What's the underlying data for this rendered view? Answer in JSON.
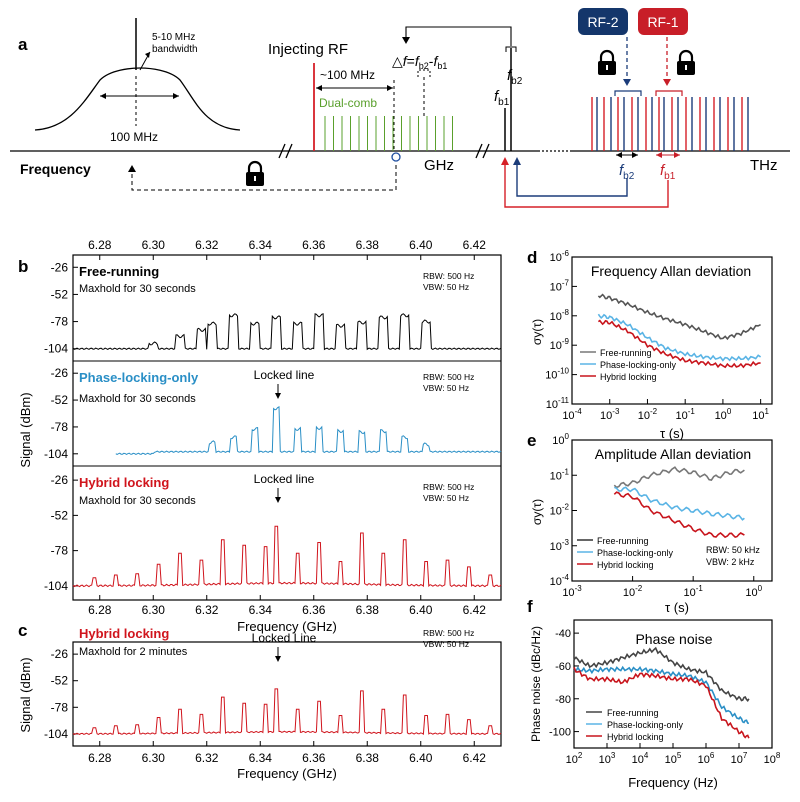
{
  "panel_a": {
    "label": "a",
    "bw_label_line1": "5-10 MHz",
    "bw_label_line2": "bandwidth",
    "width_label": "100 MHz",
    "injecting_rf": "Injecting RF",
    "spacing_label": "~100 MHz",
    "dual_comb": "Dual-comb",
    "delta_f": "△f=f_b2-f_b1",
    "fb1": "f_b1",
    "fb2": "f_b2",
    "frequency": "Frequency",
    "ghz": "GHz",
    "thz": "THz",
    "rf2": "RF-2",
    "rf1": "RF-1",
    "fb2_bottom": "f_b2",
    "fb1_bottom": "f_b1",
    "colors": {
      "red": "#d62028",
      "blue": "#1b3c7a",
      "green": "#5aa02c",
      "rf2_box": "#14366b",
      "rf1_box": "#c81e28"
    }
  },
  "panel_b": {
    "label": "b",
    "ylabel": "Signal (dBm)",
    "xlabel": "Frequency (GHz)",
    "x_ticks": [
      "6.28",
      "6.30",
      "6.32",
      "6.34",
      "6.36",
      "6.38",
      "6.40",
      "6.42"
    ],
    "y_ticks": [
      "-26",
      "-52",
      "-78",
      "-104"
    ],
    "subpanels": [
      {
        "title": "Free-running",
        "subtitle": "Maxhold for 30 seconds",
        "rbw": "RBW: 500 Hz",
        "vbw": "VBW: 50 Hz",
        "locked": "",
        "color": "#000000"
      },
      {
        "title": "Phase-locking-only",
        "subtitle": "Maxhold for 30 seconds",
        "rbw": "RBW: 500 Hz",
        "vbw": "VBW: 50 Hz",
        "locked": "Locked line",
        "color": "#2a8fc6"
      },
      {
        "title": "Hybrid locking",
        "subtitle": "Maxhold for 30 seconds",
        "rbw": "RBW: 500 Hz",
        "vbw": "VBW: 50 Hz",
        "locked": "Locked line",
        "color": "#d0141c"
      }
    ]
  },
  "panel_c": {
    "label": "c",
    "title": "Hybrid locking",
    "subtitle": "Maxhold for 2 minutes",
    "locked": "Locked Line",
    "rbw": "RBW: 500 Hz",
    "vbw": "VBW: 50 Hz",
    "ylabel": "Signal (dBm)",
    "xlabel": "Frequency (GHz)",
    "x_ticks": [
      "6.28",
      "6.30",
      "6.32",
      "6.34",
      "6.36",
      "6.38",
      "6.40",
      "6.42"
    ],
    "y_ticks": [
      "-26",
      "-52",
      "-78",
      "-104"
    ]
  },
  "panel_d": {
    "label": "d",
    "title": "Frequency Allan deviation",
    "ylabel": "σy(τ)",
    "xlabel": "τ (s)",
    "x_ticks": [
      "10-4",
      "10-3",
      "10-2",
      "10-1",
      "100",
      "101"
    ],
    "y_ticks": [
      "10-6",
      "10-7",
      "10-8",
      "10-9",
      "10-10",
      "10-11"
    ],
    "legend": [
      "Free-running",
      "Phase-locking-only",
      "Hybrid locking"
    ]
  },
  "panel_e": {
    "label": "e",
    "title": "Amplitude Allan deviation",
    "ylabel": "σy(τ)",
    "xlabel": "τ (s)",
    "x_ticks": [
      "10-3",
      "10-2",
      "10-1",
      "100"
    ],
    "y_ticks": [
      "100",
      "10-1",
      "10-2",
      "10-3",
      "10-4"
    ],
    "legend": [
      "Free-running",
      "Phase-locking-only",
      "Hybrid locking"
    ],
    "rbw": "RBW: 50 kHz",
    "vbw": "VBW: 2 kHz"
  },
  "panel_f": {
    "label": "f",
    "title": "Phase noise",
    "ylabel": "Phase noise (dBc/Hz)",
    "xlabel": "Frequency (Hz)",
    "x_ticks": [
      "102",
      "103",
      "104",
      "105",
      "106",
      "107",
      "108"
    ],
    "y_ticks": [
      "-40",
      "-60",
      "-80",
      "-100"
    ],
    "legend": [
      "Free-running",
      "Phase-locking-only",
      "Hybrid locking"
    ]
  },
  "chart_data": [
    {
      "type": "line",
      "title": "Free-running",
      "xlabel": "Frequency (GHz)",
      "ylabel": "Signal (dBm)",
      "xlim": [
        6.27,
        6.43
      ],
      "ylim": [
        -110,
        -20
      ],
      "series": [
        {
          "name": "Free-running",
          "peaks_x": [
            6.3,
            6.31,
            6.318,
            6.322,
            6.33,
            6.338,
            6.346,
            6.354,
            6.362,
            6.37,
            6.378,
            6.386,
            6.394,
            6.402
          ],
          "peaks_y": [
            -99,
            -92,
            -86,
            -80,
            -72,
            -80,
            -74,
            -80,
            -72,
            -82,
            -79,
            -74,
            -72,
            -78
          ]
        }
      ]
    },
    {
      "type": "line",
      "title": "Phase-locking-only",
      "xlabel": "Frequency (GHz)",
      "ylabel": "Signal (dBm)",
      "xlim": [
        6.27,
        6.43
      ],
      "ylim": [
        -110,
        -20
      ],
      "series": [
        {
          "name": "Phase-locking-only",
          "peaks_x": [
            6.322,
            6.33,
            6.338,
            6.346,
            6.354,
            6.362,
            6.37,
            6.378,
            6.386,
            6.394,
            6.402
          ],
          "peaks_y": [
            -93,
            -88,
            -80,
            -60,
            -80,
            -79,
            -82,
            -83,
            -82,
            -88,
            -95
          ]
        }
      ]
    },
    {
      "type": "line",
      "title": "Hybrid locking",
      "xlabel": "Frequency (GHz)",
      "ylabel": "Signal (dBm)",
      "xlim": [
        6.27,
        6.43
      ],
      "ylim": [
        -110,
        -20
      ],
      "series": [
        {
          "name": "Hybrid locking",
          "peaks_x": [
            6.278,
            6.286,
            6.294,
            6.302,
            6.31,
            6.318,
            6.326,
            6.334,
            6.342,
            6.346,
            6.354,
            6.362,
            6.37,
            6.378,
            6.386,
            6.394,
            6.402,
            6.41,
            6.418,
            6.426
          ],
          "peaks_y": [
            -98,
            -96,
            -95,
            -88,
            -80,
            -85,
            -70,
            -74,
            -75,
            -60,
            -80,
            -72,
            -86,
            -65,
            -80,
            -70,
            -86,
            -85,
            -90,
            -96
          ]
        }
      ]
    },
    {
      "type": "line",
      "title": "Hybrid locking (2 min)",
      "xlabel": "Frequency (GHz)",
      "ylabel": "Signal (dBm)",
      "xlim": [
        6.27,
        6.43
      ],
      "ylim": [
        -110,
        -20
      ],
      "series": [
        {
          "name": "Hybrid locking",
          "peaks_x": [
            6.278,
            6.286,
            6.294,
            6.302,
            6.31,
            6.318,
            6.326,
            6.334,
            6.342,
            6.346,
            6.354,
            6.362,
            6.37,
            6.378,
            6.386,
            6.394,
            6.402,
            6.41,
            6.418,
            6.426
          ],
          "peaks_y": [
            -98,
            -96,
            -95,
            -88,
            -80,
            -85,
            -68,
            -74,
            -75,
            -60,
            -80,
            -72,
            -86,
            -62,
            -80,
            -66,
            -86,
            -85,
            -90,
            -96
          ]
        }
      ]
    },
    {
      "type": "line",
      "title": "Frequency Allan deviation",
      "xlabel": "τ (s)",
      "ylabel": "σy(τ)",
      "xscale": "log",
      "yscale": "log",
      "xlim": [
        0.0001,
        20
      ],
      "ylim": [
        1e-11,
        1e-06
      ],
      "series": [
        {
          "name": "Free-running",
          "x": [
            0.0005,
            0.001,
            0.003,
            0.01,
            0.03,
            0.1,
            0.3,
            1,
            3,
            10
          ],
          "y": [
            5e-08,
            4e-08,
            2.5e-08,
            1.3e-08,
            8e-09,
            5e-09,
            3e-09,
            1.7e-09,
            2.5e-09,
            5e-09
          ]
        },
        {
          "name": "Phase-locking-only",
          "x": [
            0.0005,
            0.001,
            0.003,
            0.01,
            0.03,
            0.1,
            0.3,
            1,
            3,
            10
          ],
          "y": [
            1e-08,
            9e-09,
            5e-09,
            1.8e-09,
            8e-10,
            5e-10,
            4e-10,
            3.5e-10,
            3.5e-10,
            4e-10
          ]
        },
        {
          "name": "Hybrid locking",
          "x": [
            0.0005,
            0.001,
            0.003,
            0.01,
            0.03,
            0.1,
            0.3,
            1,
            3,
            10
          ],
          "y": [
            6e-09,
            6e-09,
            3e-09,
            1e-09,
            5e-10,
            3e-10,
            2.5e-10,
            2e-10,
            2e-10,
            2.5e-10
          ]
        }
      ]
    },
    {
      "type": "line",
      "title": "Amplitude Allan deviation",
      "xlabel": "τ (s)",
      "ylabel": "σy(τ)",
      "xscale": "log",
      "yscale": "log",
      "xlim": [
        0.001,
        2
      ],
      "ylim": [
        0.0001,
        1
      ],
      "series": [
        {
          "name": "Free-running",
          "x": [
            0.005,
            0.01,
            0.02,
            0.05,
            0.1,
            0.2,
            0.4,
            0.7
          ],
          "y": [
            0.05,
            0.06,
            0.1,
            0.15,
            0.12,
            0.08,
            0.12,
            0.14
          ]
        },
        {
          "name": "Phase-locking-only",
          "x": [
            0.005,
            0.01,
            0.02,
            0.05,
            0.1,
            0.2,
            0.4,
            0.7
          ],
          "y": [
            0.04,
            0.04,
            0.02,
            0.012,
            0.01,
            0.008,
            0.007,
            0.006
          ]
        },
        {
          "name": "Hybrid locking",
          "x": [
            0.005,
            0.01,
            0.02,
            0.05,
            0.1,
            0.2,
            0.4,
            0.7
          ],
          "y": [
            0.03,
            0.025,
            0.01,
            0.005,
            0.003,
            0.002,
            0.002,
            0.002
          ]
        }
      ]
    },
    {
      "type": "line",
      "title": "Phase noise",
      "xlabel": "Frequency (Hz)",
      "ylabel": "Phase noise (dBc/Hz)",
      "xscale": "log",
      "xlim": [
        100,
        100000000.0
      ],
      "ylim": [
        -110,
        -32
      ],
      "series": [
        {
          "name": "Free-running",
          "x": [
            100,
            300,
            1000,
            3000,
            10000,
            30000,
            100000,
            300000,
            1000000,
            3000000,
            10000000,
            20000000
          ],
          "y": [
            -55,
            -60,
            -58,
            -55,
            -52,
            -50,
            -58,
            -62,
            -64,
            -75,
            -80,
            -80
          ]
        },
        {
          "name": "Phase-locking-only",
          "x": [
            100,
            300,
            1000,
            3000,
            10000,
            30000,
            100000,
            300000,
            1000000,
            3000000,
            10000000,
            20000000
          ],
          "y": [
            -62,
            -63,
            -62,
            -62,
            -62,
            -63,
            -65,
            -66,
            -70,
            -85,
            -92,
            -95
          ]
        },
        {
          "name": "Hybrid locking",
          "x": [
            100,
            300,
            1000,
            3000,
            10000,
            30000,
            100000,
            300000,
            1000000,
            3000000,
            10000000,
            20000000
          ],
          "y": [
            -62,
            -68,
            -68,
            -70,
            -65,
            -66,
            -68,
            -68,
            -72,
            -92,
            -100,
            -104
          ]
        }
      ]
    }
  ]
}
